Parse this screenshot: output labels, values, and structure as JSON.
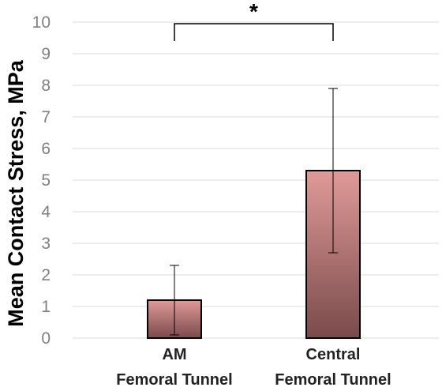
{
  "chart_data": {
    "type": "bar",
    "categories": [
      [
        "AM",
        "Femoral Tunnel"
      ],
      [
        "Central",
        "Femoral Tunnel"
      ]
    ],
    "values": [
      1.2,
      5.3
    ],
    "error_low": [
      0.1,
      2.7
    ],
    "error_high": [
      2.3,
      7.9
    ],
    "ylabel": "Mean Contact Stress, MPa",
    "xlabel": "",
    "ylim": [
      0,
      10
    ],
    "yticks": [
      0,
      1,
      2,
      3,
      4,
      5,
      6,
      7,
      8,
      9,
      10
    ],
    "grid": true,
    "significance": {
      "between": [
        0,
        1
      ],
      "label": "*"
    },
    "colors": {
      "bar_top": "#e09a98",
      "bar_bottom": "#7a4a4b",
      "grid": "#d9d9d9",
      "tick_text": "#7f7f7f"
    }
  }
}
